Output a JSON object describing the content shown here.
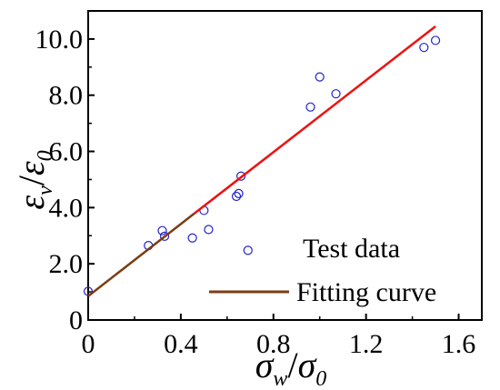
{
  "chart_data": {
    "type": "scatter",
    "title": "",
    "xlabel": {
      "main": "σ",
      "main_sub": "w",
      "sep": "/",
      "den": "σ",
      "den_sub": "0"
    },
    "ylabel": {
      "main": "ε",
      "main_sub": "v",
      "sep": "/",
      "den": "ε",
      "den_sub": "0"
    },
    "xlim": [
      0,
      1.7
    ],
    "ylim": [
      0,
      11
    ],
    "xticks": [
      0,
      0.4,
      0.8,
      1.2,
      1.6
    ],
    "xtick_labels": [
      "0",
      "0.4",
      "0.8",
      "1.2",
      "1.6"
    ],
    "yticks": [
      0,
      2,
      4,
      6,
      8,
      10
    ],
    "ytick_labels": [
      "0",
      "2.0",
      "4.0",
      "6.0",
      "8.0",
      "10.0"
    ],
    "grid": false,
    "legend_position": "bottom-right",
    "series": [
      {
        "name": "Test data",
        "kind": "scatter",
        "marker": "open-circle",
        "color": "#2222cc",
        "x": [
          0.0,
          0.26,
          0.32,
          0.33,
          0.45,
          0.5,
          0.52,
          0.64,
          0.65,
          0.66,
          0.69,
          0.96,
          1.0,
          1.07,
          1.45,
          1.5
        ],
        "y": [
          1.02,
          2.65,
          3.18,
          2.98,
          2.92,
          3.9,
          3.22,
          4.4,
          4.5,
          5.12,
          2.48,
          7.58,
          8.65,
          8.05,
          9.7,
          9.95
        ]
      },
      {
        "name": "Fitting curve",
        "kind": "line",
        "color": "#7a3d14",
        "x": [
          0.0,
          0.46
        ],
        "y": [
          0.85,
          3.8
        ]
      },
      {
        "name": "",
        "kind": "line",
        "color": "#ee1111",
        "x": [
          0.46,
          1.5
        ],
        "y": [
          3.8,
          10.45
        ]
      }
    ]
  }
}
